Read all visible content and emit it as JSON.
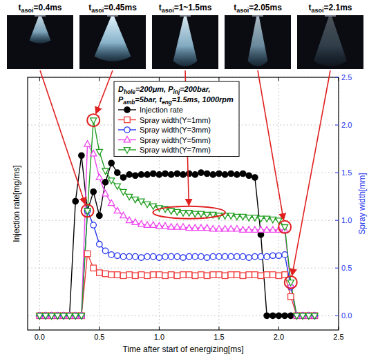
{
  "chart_data": {
    "type": "line",
    "x_label": "Time after start of energizing[ms]",
    "y_label": "Injection rate[mg/ms]",
    "y2_label": "Spray width[mm]",
    "annotation": [
      [
        {
          "text": "D",
          "sub": "hole"
        },
        {
          "text": "=200μm, P",
          "sub": "inj"
        },
        {
          "text": "=200bar,"
        }
      ],
      [
        {
          "text": "P",
          "sub": "amb"
        },
        {
          "text": "=5bar, t",
          "sub": "eng"
        },
        {
          "text": "=1.5ms, 1000rpm"
        }
      ]
    ],
    "photos": [
      {
        "label": [
          {
            "text": "t",
            "sub": "asoi"
          },
          {
            "text": "=0.4ms"
          }
        ],
        "time": 0.4
      },
      {
        "label": [
          {
            "text": "t",
            "sub": "asoi"
          },
          {
            "text": "=0.45ms"
          }
        ],
        "time": 0.45
      },
      {
        "label": [
          {
            "text": "t",
            "sub": "asoi"
          },
          {
            "text": "=1~1.5ms"
          }
        ],
        "time": [
          1,
          1.5
        ]
      },
      {
        "label": [
          {
            "text": "t",
            "sub": "asoi"
          },
          {
            "text": "=2.05ms"
          }
        ],
        "time": 2.05
      },
      {
        "label": [
          {
            "text": "t",
            "sub": "asoi"
          },
          {
            "text": "=2.1ms"
          }
        ],
        "time": 2.1
      }
    ],
    "x": [
      0,
      0.05,
      0.1,
      0.15,
      0.2,
      0.25,
      0.3,
      0.35,
      0.4,
      0.45,
      0.5,
      0.55,
      0.6,
      0.65,
      0.7,
      0.75,
      0.8,
      0.85,
      0.9,
      0.95,
      1,
      1.05,
      1.1,
      1.15,
      1.2,
      1.25,
      1.3,
      1.35,
      1.4,
      1.45,
      1.5,
      1.55,
      1.6,
      1.65,
      1.7,
      1.75,
      1.8,
      1.85,
      1.9,
      1.95,
      2,
      2.05,
      2.1,
      2.15,
      2.2,
      2.25,
      2.3
    ],
    "series": [
      {
        "name": "Injection rate",
        "color": "#000000",
        "marker": "circle-filled",
        "line_style": "solid",
        "axis": "y",
        "values": [
          0,
          0,
          0,
          0,
          0,
          0,
          1.2,
          1.68,
          1.1,
          1.3,
          1.05,
          1.4,
          1.6,
          1.5,
          1.45,
          1.48,
          1.47,
          1.48,
          1.48,
          1.49,
          1.48,
          1.49,
          1.48,
          1.49,
          1.48,
          1.49,
          1.48,
          1.5,
          1.49,
          1.48,
          1.49,
          1.48,
          1.49,
          1.48,
          1.49,
          1.47,
          1.45,
          0.85,
          0,
          0,
          0,
          0,
          0,
          0,
          0,
          0,
          0
        ]
      },
      {
        "name": "Spray width(Y=1mm)",
        "color": "#f03c3c",
        "marker": "square",
        "line_style": "solid",
        "axis": "y2",
        "values": [
          0,
          0,
          0,
          0,
          0,
          0,
          0,
          0,
          0.65,
          0.5,
          0.45,
          0.44,
          0.43,
          0.43,
          0.42,
          0.43,
          0.42,
          0.43,
          0.42,
          0.43,
          0.43,
          0.42,
          0.43,
          0.42,
          0.43,
          0.43,
          0.42,
          0.43,
          0.42,
          0.43,
          0.43,
          0.42,
          0.43,
          0.43,
          0.42,
          0.43,
          0.43,
          0.42,
          0.43,
          0.43,
          0.42,
          0.43,
          0.2,
          0,
          0,
          0,
          0
        ]
      },
      {
        "name": "Spray width(Y=3mm)",
        "color": "#2233ee",
        "marker": "circle",
        "line_style": "solid",
        "axis": "y2",
        "values": [
          0,
          0,
          0,
          0,
          0,
          0,
          0,
          0,
          1.1,
          0.95,
          0.75,
          0.68,
          0.64,
          0.63,
          0.62,
          0.62,
          0.62,
          0.61,
          0.62,
          0.62,
          0.61,
          0.62,
          0.62,
          0.62,
          0.61,
          0.62,
          0.62,
          0.62,
          0.61,
          0.62,
          0.62,
          0.62,
          0.62,
          0.62,
          0.62,
          0.61,
          0.62,
          0.62,
          0.62,
          0.63,
          0.63,
          0.64,
          0.3,
          0,
          0,
          0,
          0
        ]
      },
      {
        "name": "Spray width(Y=5mm)",
        "color": "#ee44ee",
        "marker": "triangle-up",
        "line_style": "solid",
        "axis": "y2",
        "values": [
          0,
          0,
          0,
          0,
          0,
          0,
          0,
          0,
          1.8,
          1.7,
          1.45,
          1.28,
          1.18,
          1.1,
          1.05,
          1.0,
          0.98,
          0.96,
          0.95,
          0.95,
          0.94,
          0.94,
          0.93,
          0.93,
          0.93,
          0.92,
          0.92,
          0.92,
          0.92,
          0.91,
          0.91,
          0.91,
          0.91,
          0.91,
          0.9,
          0.9,
          0.9,
          0.9,
          0.9,
          0.9,
          0.9,
          0.9,
          0.32,
          0,
          0,
          0,
          0
        ]
      },
      {
        "name": "Spray width(Y=7mm)",
        "color": "#1f9e1f",
        "marker": "triangle-down",
        "line_style": "solid",
        "axis": "y2",
        "values": [
          0,
          0,
          0,
          0,
          0,
          0,
          0,
          0,
          1.1,
          2.05,
          1.72,
          1.52,
          1.42,
          1.36,
          1.3,
          1.25,
          1.22,
          1.2,
          1.17,
          1.15,
          1.13,
          1.12,
          1.1,
          1.09,
          1.08,
          1.08,
          1.07,
          1.07,
          1.06,
          1.06,
          1.05,
          1.05,
          1.05,
          1.04,
          1.04,
          1.03,
          1.03,
          1.02,
          1.02,
          1.01,
          1.0,
          0.93,
          0.35,
          0,
          0,
          0,
          0
        ]
      }
    ],
    "xlim": [
      -0.1,
      2.5
    ],
    "xticks": [
      {
        "value": 0,
        "label": "0.0"
      },
      {
        "value": 0.5,
        "label": "0.5"
      },
      {
        "value": 1,
        "label": "1.0"
      },
      {
        "value": 1.5,
        "label": "1.5"
      },
      {
        "value": 2,
        "label": "2.0"
      },
      {
        "value": 2.5,
        "label": "2.5"
      }
    ],
    "ylim": [
      -0.15,
      2.5
    ],
    "y2lim": [
      -0.15,
      2.5
    ],
    "y2ticks": [
      {
        "value": 0,
        "label": "0.0"
      },
      {
        "value": 0.5,
        "label": "0.5"
      },
      {
        "value": 1,
        "label": "1.0"
      },
      {
        "value": 1.5,
        "label": "1.5"
      },
      {
        "value": 2,
        "label": "2.0"
      },
      {
        "value": 2.5,
        "label": "2.5"
      }
    ],
    "grid": true,
    "legend": "top"
  }
}
